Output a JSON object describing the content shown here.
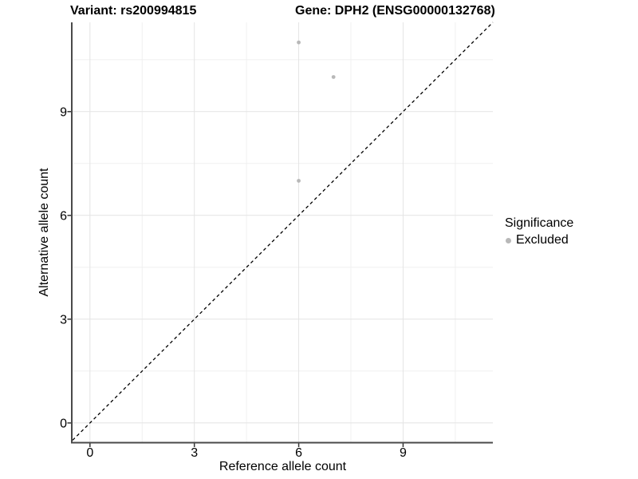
{
  "chart_data": {
    "type": "scatter",
    "title_left": "Variant: rs200994815",
    "title_right": "Gene: DPH2 (ENSG00000132768)",
    "xlabel": "Reference allele count",
    "ylabel": "Alternative allele count",
    "xlim": [
      -0.5,
      11.58
    ],
    "ylim": [
      -0.57,
      11.58
    ],
    "x_major_ticks": [
      0,
      3,
      6,
      9
    ],
    "y_major_ticks": [
      0,
      3,
      6,
      9
    ],
    "x_minor_gridlines": [
      1.5,
      4.5,
      7.5,
      10.5
    ],
    "y_minor_gridlines": [
      1.5,
      4.5,
      7.5,
      10.5
    ],
    "grid": "major+minor",
    "series": [
      {
        "name": "Excluded",
        "color": "#b8b8b8",
        "marker": "circle",
        "marker_radius": 2.4,
        "points": [
          {
            "x": 6,
            "y": 11
          },
          {
            "x": 7,
            "y": 10
          },
          {
            "x": 6,
            "y": 7
          }
        ]
      }
    ],
    "reference_line": {
      "kind": "identity",
      "dash": "dashed",
      "color": "#000000"
    },
    "legend": {
      "title": "Significance",
      "position": "right",
      "items": [
        {
          "label": "Excluded",
          "color": "#b8b8b8"
        }
      ]
    },
    "style": {
      "grid_major_color": "#e4e4e4",
      "grid_minor_color": "#f0f0f0",
      "axis_color": "#4a4a4a",
      "tick_color": "#333333",
      "text_color": "#000000",
      "background": "#ffffff"
    }
  }
}
